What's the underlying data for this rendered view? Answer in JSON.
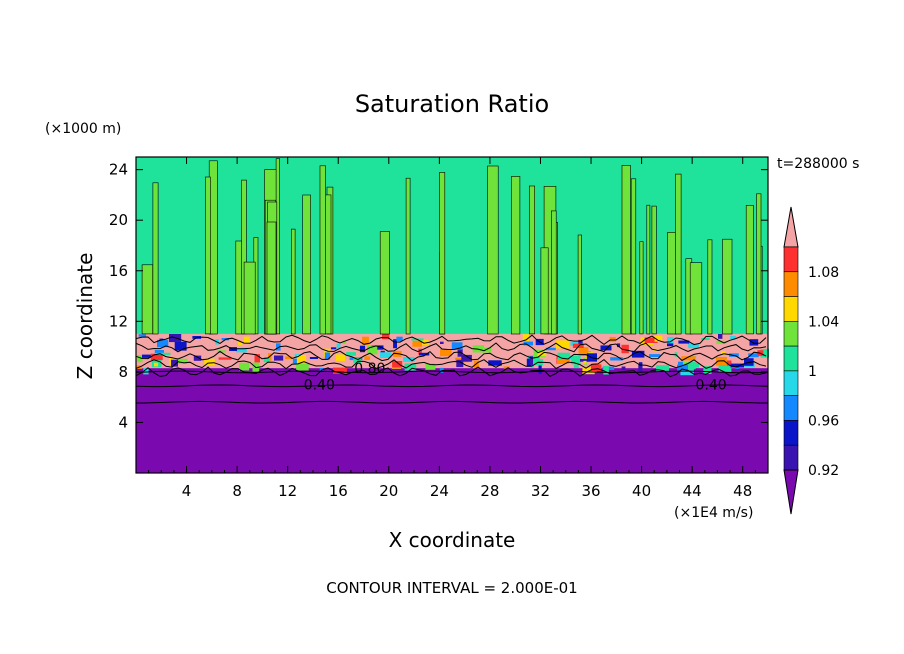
{
  "chart_data": {
    "type": "heatmap",
    "title": "Saturation Ratio",
    "xlabel": "X coordinate",
    "ylabel": "Z coordinate",
    "x_unit": "(×1E4 m/s)",
    "y_unit": "(×1000 m)",
    "time_label": "t=288000 s",
    "footer": "CONTOUR INTERVAL = 2.000E-01",
    "xlim": [
      0,
      50
    ],
    "ylim": [
      0,
      25
    ],
    "x_ticks": [
      4,
      8,
      12,
      16,
      20,
      24,
      28,
      32,
      36,
      40,
      44,
      48
    ],
    "y_ticks": [
      4,
      8,
      12,
      16,
      20,
      24
    ],
    "contour_labels": [
      {
        "x": 14.5,
        "y": 7.0,
        "text": "0.40"
      },
      {
        "x": 18.5,
        "y": 8.3,
        "text": "0.80"
      },
      {
        "x": 45.5,
        "y": 7.0,
        "text": "0.40"
      }
    ],
    "colorbar": {
      "bins": [
        {
          "min": 1.08,
          "max": null,
          "color": "#f4a4a4"
        },
        {
          "min": 1.06,
          "max": 1.08,
          "color": "#ff3030"
        },
        {
          "min": 1.04,
          "max": 1.06,
          "color": "#ff8c00"
        },
        {
          "min": 1.02,
          "max": 1.04,
          "color": "#ffd800"
        },
        {
          "min": 1.0,
          "max": 1.02,
          "color": "#6fe33a"
        },
        {
          "min": 0.98,
          "max": 1.0,
          "color": "#1fe39a"
        },
        {
          "min": 0.96,
          "max": 0.98,
          "color": "#26d8e8"
        },
        {
          "min": 0.94,
          "max": 0.96,
          "color": "#1488ff"
        },
        {
          "min": 0.92,
          "max": 0.94,
          "color": "#0a14c8"
        },
        {
          "min": 0.9,
          "max": 0.92,
          "color": "#3a14b0"
        },
        {
          "min": null,
          "max": 0.9,
          "color": "#7a0ab0"
        }
      ],
      "tick_labels": [
        "1.08",
        "1.04",
        "1",
        "0.96",
        "0.92"
      ]
    },
    "regions": [
      {
        "z_min": 0,
        "z_max": 8.3,
        "approx_value": "< 0.90",
        "color": "#7a0ab0"
      },
      {
        "z_min": 8.3,
        "z_max": 11.0,
        "approx_value": "0.90 – 1.10 (turbulent layer)",
        "color": "#f4a4a4"
      },
      {
        "z_min": 11.0,
        "z_max": 25,
        "approx_value": "0.98 – 1.02",
        "color": "#1fe39a"
      }
    ]
  }
}
